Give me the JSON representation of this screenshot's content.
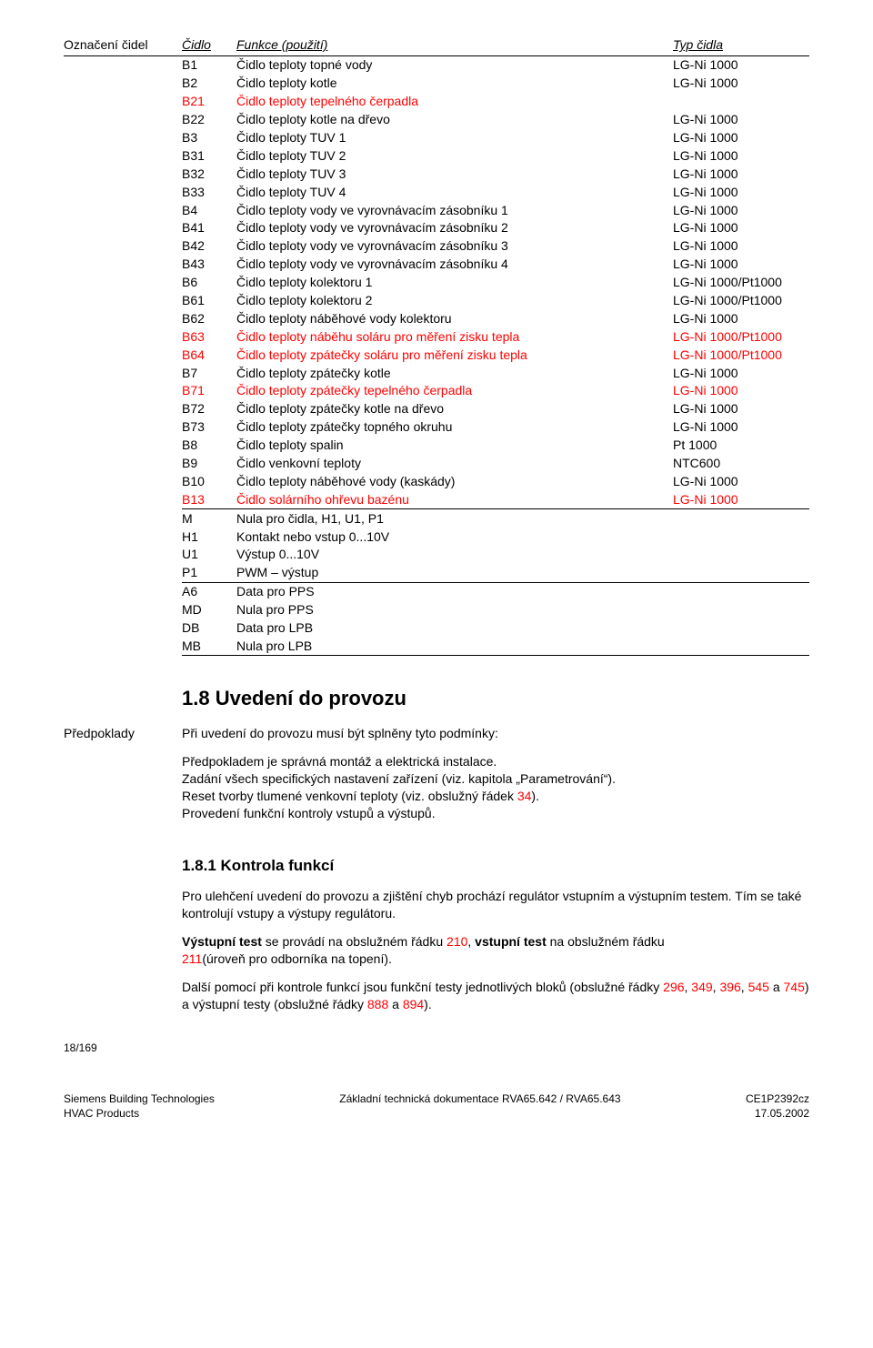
{
  "colors": {
    "text": "#000000",
    "accent": "#ff0000",
    "border": "#000000",
    "background": "#ffffff"
  },
  "typography": {
    "body_size_pt": 10,
    "h2_size_pt": 16,
    "h3_size_pt": 12,
    "font_family": "Arial"
  },
  "header": {
    "side_label": "Označení čidel",
    "col1": "Čidlo",
    "col2": "Funkce (použití)",
    "col3": "Typ čidla"
  },
  "rows_group1": [
    {
      "c1": "B1",
      "c2": "Čidlo teploty topné vody",
      "c3": "LG-Ni 1000",
      "red": false
    },
    {
      "c1": "B2",
      "c2": "Čidlo teploty kotle",
      "c3": "LG-Ni 1000",
      "red": false
    },
    {
      "c1": "B21",
      "c2": "Čidlo teploty tepelného čerpadla",
      "c3": "",
      "red": true
    },
    {
      "c1": "B22",
      "c2": "Čidlo teploty kotle na dřevo",
      "c3": "LG-Ni 1000",
      "red": false
    },
    {
      "c1": "B3",
      "c2": "Čidlo teploty TUV 1",
      "c3": "LG-Ni 1000",
      "red": false
    },
    {
      "c1": "B31",
      "c2": "Čidlo teploty TUV 2",
      "c3": "LG-Ni 1000",
      "red": false
    },
    {
      "c1": "B32",
      "c2": "Čidlo teploty TUV 3",
      "c3": "LG-Ni 1000",
      "red": false
    },
    {
      "c1": "B33",
      "c2": "Čidlo teploty TUV 4",
      "c3": "LG-Ni 1000",
      "red": false
    },
    {
      "c1": "B4",
      "c2": "Čidlo teploty vody ve vyrovnávacím zásobníku 1",
      "c3": "LG-Ni 1000",
      "red": false
    },
    {
      "c1": "B41",
      "c2": "Čidlo teploty vody ve vyrovnávacím zásobníku 2",
      "c3": "LG-Ni 1000",
      "red": false
    },
    {
      "c1": "B42",
      "c2": "Čidlo teploty vody ve vyrovnávacím zásobníku 3",
      "c3": "LG-Ni 1000",
      "red": false
    },
    {
      "c1": "B43",
      "c2": "Čidlo teploty vody ve vyrovnávacím zásobníku 4",
      "c3": "LG-Ni 1000",
      "red": false
    },
    {
      "c1": "B6",
      "c2": "Čidlo teploty kolektoru 1",
      "c3": "LG-Ni 1000/Pt1000",
      "red": false
    },
    {
      "c1": "B61",
      "c2": "Čidlo teploty kolektoru 2",
      "c3": "LG-Ni 1000/Pt1000",
      "red": false
    },
    {
      "c1": "B62",
      "c2": "Čidlo teploty náběhové vody kolektoru",
      "c3": "LG-Ni 1000",
      "red": false
    },
    {
      "c1": "B63",
      "c2": "Čidlo teploty náběhu soláru pro měření zisku tepla",
      "c3": "LG-Ni 1000/Pt1000",
      "red": true
    },
    {
      "c1": "B64",
      "c2": "Čidlo teploty zpátečky soláru pro měření zisku tepla",
      "c3": "LG-Ni 1000/Pt1000",
      "red": true
    },
    {
      "c1": "B7",
      "c2": "Čidlo teploty zpátečky kotle",
      "c3": "LG-Ni 1000",
      "red": false
    },
    {
      "c1": "B71",
      "c2": "Čidlo teploty zpátečky tepelného čerpadla",
      "c3": "LG-Ni 1000",
      "red": true
    },
    {
      "c1": "B72",
      "c2": "Čidlo teploty zpátečky kotle na dřevo",
      "c3": "LG-Ni 1000",
      "red": false
    },
    {
      "c1": "B73",
      "c2": "Čidlo teploty zpátečky topného okruhu",
      "c3": "LG-Ni 1000",
      "red": false
    },
    {
      "c1": "B8",
      "c2": "Čidlo teploty spalin",
      "c3": "Pt 1000",
      "red": false
    },
    {
      "c1": "B9",
      "c2": "Čidlo venkovní teploty",
      "c3": "NTC600",
      "red": false
    },
    {
      "c1": "B10",
      "c2": "Čidlo teploty náběhové vody (kaskády)",
      "c3": "LG-Ni 1000",
      "red": false
    },
    {
      "c1": "B13",
      "c2": "Čidlo solárního ohřevu bazénu",
      "c3": "LG-Ni 1000",
      "red": true
    }
  ],
  "rows_group2": [
    {
      "c1": "M",
      "c2": "Nula pro čidla, H1, U1, P1",
      "c3": ""
    },
    {
      "c1": "H1",
      "c2": "Kontakt nebo vstup 0...10V",
      "c3": ""
    },
    {
      "c1": "U1",
      "c2": "Výstup 0...10V",
      "c3": ""
    },
    {
      "c1": "P1",
      "c2": "PWM – výstup",
      "c3": ""
    }
  ],
  "rows_group3": [
    {
      "c1": "A6",
      "c2": "Data pro PPS",
      "c3": ""
    },
    {
      "c1": "MD",
      "c2": "Nula pro PPS",
      "c3": ""
    },
    {
      "c1": "DB",
      "c2": "Data pro LPB",
      "c3": ""
    },
    {
      "c1": "MB",
      "c2": "Nula pro LPB",
      "c3": ""
    }
  ],
  "section18": {
    "title": "1.8    Uvedení do provozu",
    "side_label": "Předpoklady",
    "p1": "Při uvedení do provozu musí být splněny tyto podmínky:",
    "p2_a": "Předpokladem je správná montáž a elektrická instalace.",
    "p2_b": "Zadání všech specifických nastavení zařízení (viz. kapitola „Parametrování“).",
    "p2_c_pre": "Reset tvorby tlumené venkovní teploty (viz. obslužný řádek ",
    "p2_c_num": "34",
    "p2_c_post": ").",
    "p2_d": "Provedení funkční kontroly vstupů a výstupů."
  },
  "section181": {
    "title": "1.8.1   Kontrola funkcí",
    "p1": "Pro ulehčení uvedení do provozu a zjištění chyb prochází regulátor vstupním a výstupním testem. Tím se také kontrolují vstupy a výstupy regulátoru.",
    "p2_bold1": "Výstupní test",
    "p2_mid1": " se provádí na obslužném řádku ",
    "p2_num1": "210",
    "p2_mid2": ", ",
    "p2_bold2": "vstupní test",
    "p2_mid3": " na obslužném řádku ",
    "p2_num2": "211",
    "p2_tail": "(úroveň pro odborníka na topení).",
    "p3_a": "Další pomocí při kontrole funkcí jsou funkční testy jednotlivých bloků (obslužné řádky ",
    "p3_n1": "296",
    "p3_s1": ", ",
    "p3_n2": "349",
    "p3_s2": ", ",
    "p3_n3": "396",
    "p3_s3": ", ",
    "p3_n4": "545",
    "p3_s4": " a ",
    "p3_n5": "745",
    "p3_s5": ") a výstupní testy (obslužné řádky ",
    "p3_n6": "888",
    "p3_s6": " a ",
    "p3_n7": "894",
    "p3_s7": ")."
  },
  "footer": {
    "page": "18/169",
    "left1": "Siemens Building Technologies",
    "left2": "HVAC Products",
    "center": "Základní technická dokumentace RVA65.642 / RVA65.643",
    "right1": "CE1P2392cz",
    "right2": "17.05.2002"
  }
}
